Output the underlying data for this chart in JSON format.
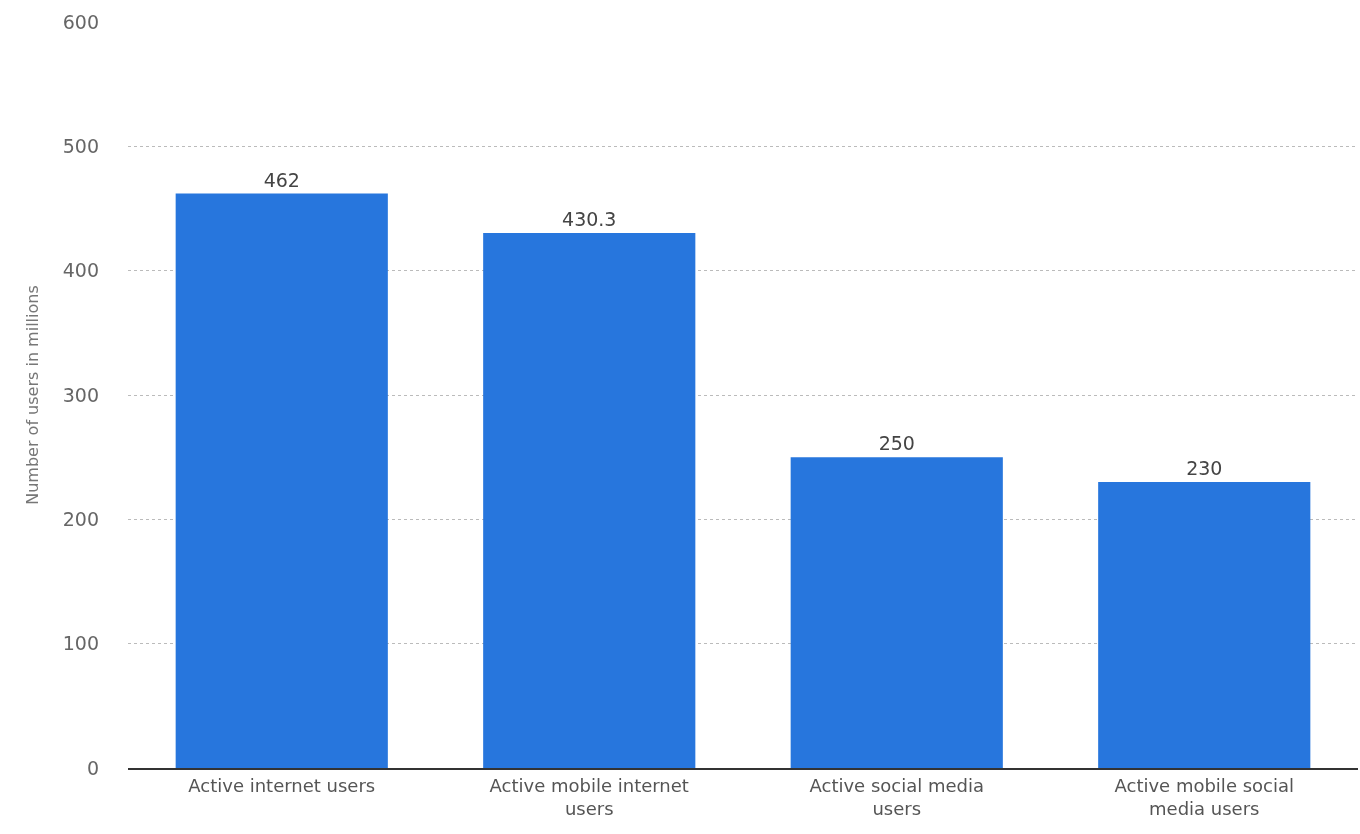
{
  "chart_data": {
    "type": "bar",
    "ylabel": "Number of users in millions",
    "categories": [
      "Active internet users",
      "Active mobile internet users",
      "Active social media users",
      "Active mobile social media users"
    ],
    "values": [
      462,
      430.3,
      250,
      230
    ],
    "color": "#2776dd",
    "data_labels": true,
    "ylim": [
      0,
      600
    ],
    "yticks": [
      0,
      100,
      200,
      300,
      400,
      500,
      600
    ],
    "grid": "y",
    "legend": false
  }
}
